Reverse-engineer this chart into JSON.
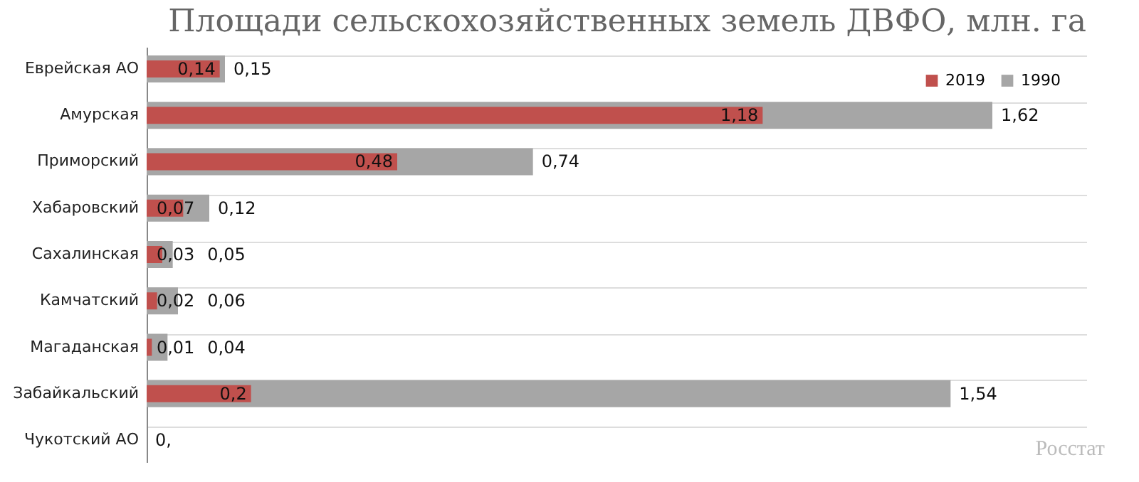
{
  "chart_data": {
    "type": "bar",
    "orientation": "horizontal",
    "title": "Площади сельскохозяйственных земель ДВФО, млн. га",
    "categories": [
      "Еврейская АО",
      "Амурская",
      "Приморский",
      "Хабаровский",
      "Сахалинская",
      "Камчатский",
      "Магаданская",
      "Забайкальский",
      "Чукотский АО"
    ],
    "series": [
      {
        "name": "2019",
        "color": "#c0504d",
        "values": [
          0.14,
          1.18,
          0.48,
          0.07,
          0.03,
          0.02,
          0.01,
          0.2,
          0
        ],
        "value_labels": [
          "0,14",
          "1,18",
          "0,48",
          "0,07",
          "0,03",
          "0,02",
          "0,01",
          "0,2",
          null
        ]
      },
      {
        "name": "1990",
        "color": "#a6a6a6",
        "values": [
          0.15,
          1.62,
          0.74,
          0.12,
          0.05,
          0.06,
          0.04,
          1.54,
          0
        ],
        "value_labels": [
          "0,15",
          "1,62",
          "0,74",
          "0,12",
          "0,05",
          "0,06",
          "0,04",
          "1,54",
          "0,"
        ]
      }
    ],
    "xlim": [
      0,
      1.8
    ],
    "grid": "y",
    "legend": "top right",
    "annotations": [
      "Росстат"
    ]
  }
}
